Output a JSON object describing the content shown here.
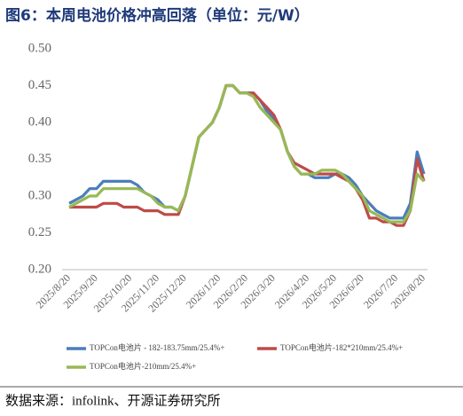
{
  "chart_data": {
    "type": "line",
    "title": "图6：本周电池价格冲高回落（单位：元/W）",
    "source": "数据来源：infolink、开源证券研究所",
    "categories": [
      "2025/8/20",
      null,
      null,
      null,
      "2025/9/20",
      null,
      null,
      null,
      null,
      "2025/10/20",
      null,
      null,
      null,
      "2025/11/20",
      null,
      null,
      null,
      "2025/12/20",
      null,
      null,
      null,
      null,
      "2026/1/20",
      null,
      null,
      null,
      "2026/2/20",
      null,
      null,
      null,
      "2026/3/20",
      null,
      null,
      null,
      null,
      "2026/4/20",
      null,
      null,
      null,
      "2026/5/20",
      null,
      null,
      null,
      "2026/6/20",
      null,
      null,
      null,
      null,
      "2026/7/20",
      null,
      null,
      null,
      "2026/8/20"
    ],
    "series": [
      {
        "name": "TOPCon电池片 - 182-183.75mm/25.4%+",
        "color": "#4a7ebb",
        "values": [
          0.29,
          0.295,
          0.3,
          0.31,
          0.31,
          0.32,
          0.32,
          0.32,
          0.32,
          0.32,
          0.315,
          0.305,
          0.3,
          0.295,
          0.285,
          0.285,
          0.28,
          0.3,
          0.34,
          0.38,
          0.39,
          0.4,
          0.42,
          0.45,
          0.45,
          0.44,
          0.44,
          0.44,
          0.43,
          0.415,
          0.405,
          0.39,
          0.36,
          0.34,
          0.33,
          0.33,
          0.325,
          0.325,
          0.325,
          0.33,
          0.33,
          0.325,
          0.315,
          0.3,
          0.29,
          0.28,
          0.275,
          0.27,
          0.27,
          0.27,
          0.29,
          0.36,
          0.33
        ]
      },
      {
        "name": "TOPCon电池片-182*210mm/25.4%+",
        "color": "#be4b48",
        "values": [
          0.285,
          0.285,
          0.285,
          0.285,
          0.285,
          0.29,
          0.29,
          0.29,
          0.285,
          0.285,
          0.285,
          0.28,
          0.28,
          0.28,
          0.275,
          0.275,
          0.275,
          0.3,
          0.34,
          0.38,
          0.39,
          0.4,
          0.42,
          0.45,
          0.45,
          0.44,
          0.44,
          0.44,
          0.43,
          0.42,
          0.41,
          0.39,
          0.36,
          0.345,
          0.34,
          0.335,
          0.33,
          0.33,
          0.33,
          0.33,
          0.325,
          0.32,
          0.31,
          0.295,
          0.27,
          0.27,
          0.265,
          0.265,
          0.26,
          0.26,
          0.28,
          0.35,
          0.32
        ]
      },
      {
        "name": "TOPCon电池片-210mm/25.4%+",
        "color": "#98b954",
        "values": [
          0.285,
          0.29,
          0.295,
          0.3,
          0.3,
          0.31,
          0.31,
          0.31,
          0.31,
          0.31,
          0.31,
          0.305,
          0.3,
          0.29,
          0.285,
          0.285,
          0.28,
          0.3,
          0.34,
          0.38,
          0.39,
          0.4,
          0.42,
          0.45,
          0.45,
          0.44,
          0.44,
          0.435,
          0.42,
          0.41,
          0.4,
          0.39,
          0.36,
          0.34,
          0.33,
          0.33,
          0.33,
          0.335,
          0.335,
          0.335,
          0.33,
          0.32,
          0.31,
          0.3,
          0.28,
          0.275,
          0.27,
          0.265,
          0.265,
          0.265,
          0.28,
          0.33,
          0.32
        ]
      }
    ],
    "ylim": [
      0.2,
      0.5
    ],
    "yticks": [
      {
        "value": 0.2,
        "label": "0.20"
      },
      0.25,
      {
        "value": 0.3,
        "label": "0.30"
      },
      0.35,
      {
        "value": 0.4,
        "label": "0.40"
      },
      0.45,
      {
        "value": 0.5,
        "label": "0.50"
      }
    ]
  }
}
